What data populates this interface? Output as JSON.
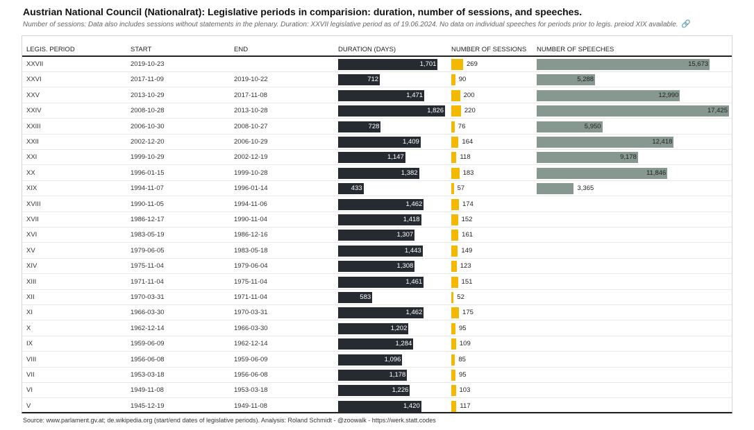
{
  "title": "Austrian National Council (Nationalrat): Legislative periods in comparision: duration, number of sessions, and speeches.",
  "subtitle": "Number of sessions: Data also includes sessions without statements in the plenary. Duration: XXVII legislative period as of 19.06.2024. No data on individual speeches for periods prior to legis. preiod XIX available.",
  "link_icon": "link-icon",
  "source": "Source: www.parlament.gv.at; de.wikipedia.org (start/end dates of legislative periods). Analysis: Roland Schmidt - @zoowalk - https://werk.statt.codes",
  "colors": {
    "duration": "#262a31",
    "sessions": "#f5b800",
    "speeches": "#879890"
  },
  "chart_data": {
    "type": "table",
    "columns": [
      "LEGIS. PERIOD",
      "START",
      "END",
      "DURATION (DAYS)",
      "NUMBER OF SESSIONS",
      "NUMBER OF SPEECHES"
    ],
    "duration_max": 1826,
    "sessions_max": 269,
    "speeches_max": 17425,
    "rows": [
      {
        "period": "XXVII",
        "start": "2019-10-23",
        "end": "",
        "duration": 1701,
        "duration_label": "1,701",
        "sessions": 269,
        "sessions_label": "269",
        "speeches": 15673,
        "speeches_label": "15,673"
      },
      {
        "period": "XXVI",
        "start": "2017-11-09",
        "end": "2019-10-22",
        "duration": 712,
        "duration_label": "712",
        "sessions": 90,
        "sessions_label": "90",
        "speeches": 5288,
        "speeches_label": "5,288"
      },
      {
        "period": "XXV",
        "start": "2013-10-29",
        "end": "2017-11-08",
        "duration": 1471,
        "duration_label": "1,471",
        "sessions": 200,
        "sessions_label": "200",
        "speeches": 12990,
        "speeches_label": "12,990"
      },
      {
        "period": "XXIV",
        "start": "2008-10-28",
        "end": "2013-10-28",
        "duration": 1826,
        "duration_label": "1,826",
        "sessions": 220,
        "sessions_label": "220",
        "speeches": 17425,
        "speeches_label": "17,425"
      },
      {
        "period": "XXIII",
        "start": "2006-10-30",
        "end": "2008-10-27",
        "duration": 728,
        "duration_label": "728",
        "sessions": 76,
        "sessions_label": "76",
        "speeches": 5950,
        "speeches_label": "5,950"
      },
      {
        "period": "XXII",
        "start": "2002-12-20",
        "end": "2006-10-29",
        "duration": 1409,
        "duration_label": "1,409",
        "sessions": 164,
        "sessions_label": "164",
        "speeches": 12418,
        "speeches_label": "12,418"
      },
      {
        "period": "XXI",
        "start": "1999-10-29",
        "end": "2002-12-19",
        "duration": 1147,
        "duration_label": "1,147",
        "sessions": 118,
        "sessions_label": "118",
        "speeches": 9178,
        "speeches_label": "9,178"
      },
      {
        "period": "XX",
        "start": "1996-01-15",
        "end": "1999-10-28",
        "duration": 1382,
        "duration_label": "1,382",
        "sessions": 183,
        "sessions_label": "183",
        "speeches": 11846,
        "speeches_label": "11,846"
      },
      {
        "period": "XIX",
        "start": "1994-11-07",
        "end": "1996-01-14",
        "duration": 433,
        "duration_label": "433",
        "sessions": 57,
        "sessions_label": "57",
        "speeches": 3365,
        "speeches_label": "3,365"
      },
      {
        "period": "XVIII",
        "start": "1990-11-05",
        "end": "1994-11-06",
        "duration": 1462,
        "duration_label": "1,462",
        "sessions": 174,
        "sessions_label": "174",
        "speeches": null,
        "speeches_label": ""
      },
      {
        "period": "XVII",
        "start": "1986-12-17",
        "end": "1990-11-04",
        "duration": 1418,
        "duration_label": "1,418",
        "sessions": 152,
        "sessions_label": "152",
        "speeches": null,
        "speeches_label": ""
      },
      {
        "period": "XVI",
        "start": "1983-05-19",
        "end": "1986-12-16",
        "duration": 1307,
        "duration_label": "1,307",
        "sessions": 161,
        "sessions_label": "161",
        "speeches": null,
        "speeches_label": ""
      },
      {
        "period": "XV",
        "start": "1979-06-05",
        "end": "1983-05-18",
        "duration": 1443,
        "duration_label": "1,443",
        "sessions": 149,
        "sessions_label": "149",
        "speeches": null,
        "speeches_label": ""
      },
      {
        "period": "XIV",
        "start": "1975-11-04",
        "end": "1979-06-04",
        "duration": 1308,
        "duration_label": "1,308",
        "sessions": 123,
        "sessions_label": "123",
        "speeches": null,
        "speeches_label": ""
      },
      {
        "period": "XIII",
        "start": "1971-11-04",
        "end": "1975-11-04",
        "duration": 1461,
        "duration_label": "1,461",
        "sessions": 151,
        "sessions_label": "151",
        "speeches": null,
        "speeches_label": ""
      },
      {
        "period": "XII",
        "start": "1970-03-31",
        "end": "1971-11-04",
        "duration": 583,
        "duration_label": "583",
        "sessions": 52,
        "sessions_label": "52",
        "speeches": null,
        "speeches_label": ""
      },
      {
        "period": "XI",
        "start": "1966-03-30",
        "end": "1970-03-31",
        "duration": 1462,
        "duration_label": "1,462",
        "sessions": 175,
        "sessions_label": "175",
        "speeches": null,
        "speeches_label": ""
      },
      {
        "period": "X",
        "start": "1962-12-14",
        "end": "1966-03-30",
        "duration": 1202,
        "duration_label": "1,202",
        "sessions": 95,
        "sessions_label": "95",
        "speeches": null,
        "speeches_label": ""
      },
      {
        "period": "IX",
        "start": "1959-06-09",
        "end": "1962-12-14",
        "duration": 1284,
        "duration_label": "1,284",
        "sessions": 109,
        "sessions_label": "109",
        "speeches": null,
        "speeches_label": ""
      },
      {
        "period": "VIII",
        "start": "1956-06-08",
        "end": "1959-06-09",
        "duration": 1096,
        "duration_label": "1,096",
        "sessions": 85,
        "sessions_label": "85",
        "speeches": null,
        "speeches_label": ""
      },
      {
        "period": "VII",
        "start": "1953-03-18",
        "end": "1956-06-08",
        "duration": 1178,
        "duration_label": "1,178",
        "sessions": 95,
        "sessions_label": "95",
        "speeches": null,
        "speeches_label": ""
      },
      {
        "period": "VI",
        "start": "1949-11-08",
        "end": "1953-03-18",
        "duration": 1226,
        "duration_label": "1,226",
        "sessions": 103,
        "sessions_label": "103",
        "speeches": null,
        "speeches_label": ""
      },
      {
        "period": "V",
        "start": "1945-12-19",
        "end": "1949-11-08",
        "duration": 1420,
        "duration_label": "1,420",
        "sessions": 117,
        "sessions_label": "117",
        "speeches": null,
        "speeches_label": ""
      }
    ]
  }
}
